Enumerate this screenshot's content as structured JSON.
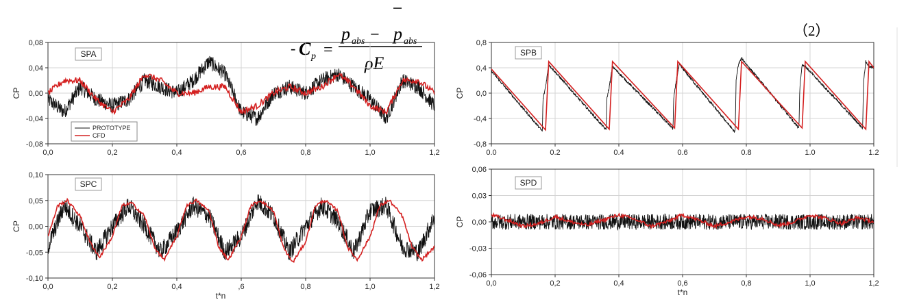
{
  "equation": {
    "prefix": "-",
    "lhs": "C",
    "lhs_sub": "p",
    "equals": "=",
    "num_p": "p",
    "num_sub": "abs",
    "num_minus": "−",
    "den": "ρE",
    "number": "（2）"
  },
  "colors": {
    "prototype": "#111111",
    "cfd": "#d42020",
    "grid": "#d4d4d4"
  },
  "chart_data": [
    {
      "id": "spa",
      "type": "line",
      "panel_label": "SPA",
      "ylabel": "CP",
      "xlabel": "",
      "xlim": [
        0,
        1.2
      ],
      "ylim": [
        -0.08,
        0.08
      ],
      "x_ticks": [
        "0,0",
        "0,2",
        "0,4",
        "0,6",
        "0,8",
        "1,0",
        "1,2"
      ],
      "y_ticks": [
        "-0,08",
        "-0,04",
        "0,00",
        "0,04",
        "0,08"
      ],
      "legend": {
        "placement": "bottom-left",
        "entries": [
          "PROTOTYPE",
          "CFD"
        ]
      },
      "series": [
        {
          "name": "PROTOTYPE",
          "x": [
            0,
            0.05,
            0.1,
            0.15,
            0.2,
            0.25,
            0.3,
            0.35,
            0.4,
            0.45,
            0.5,
            0.55,
            0.6,
            0.65,
            0.7,
            0.75,
            0.8,
            0.85,
            0.9,
            0.95,
            1.0,
            1.05,
            1.1,
            1.15,
            1.2
          ],
          "y": [
            -0.01,
            -0.03,
            0.01,
            -0.01,
            -0.02,
            -0.01,
            0.02,
            0.01,
            0.0,
            0.02,
            0.05,
            0.03,
            -0.03,
            -0.04,
            0.0,
            0.01,
            0.0,
            0.02,
            0.03,
            0.01,
            -0.01,
            -0.04,
            0.02,
            0.01,
            -0.02
          ],
          "noise": 0.012
        },
        {
          "name": "CFD",
          "x": [
            0,
            0.05,
            0.1,
            0.15,
            0.2,
            0.25,
            0.3,
            0.35,
            0.4,
            0.45,
            0.5,
            0.55,
            0.6,
            0.65,
            0.7,
            0.75,
            0.8,
            0.85,
            0.9,
            0.95,
            1.0,
            1.05,
            1.1,
            1.15,
            1.2
          ],
          "y": [
            0.0,
            0.02,
            0.02,
            -0.01,
            -0.03,
            -0.01,
            0.03,
            0.02,
            0.0,
            0.0,
            0.01,
            0.01,
            -0.03,
            -0.02,
            0.0,
            0.01,
            0.0,
            0.01,
            0.03,
            0.01,
            -0.02,
            -0.03,
            0.02,
            0.02,
            0.0
          ],
          "noise": 0.005
        }
      ]
    },
    {
      "id": "spb",
      "type": "line",
      "panel_label": "SPB",
      "ylabel": "CP",
      "xlabel": "",
      "xlim": [
        0,
        1.2
      ],
      "ylim": [
        -0.8,
        0.8
      ],
      "x_ticks": [
        "0.0",
        "0.2",
        "0.4",
        "0.6",
        "0.8",
        "1.0",
        "1.2"
      ],
      "y_ticks": [
        "-0,8",
        "-0,4",
        "0,0",
        "0,4",
        "0,8"
      ],
      "series": [
        {
          "name": "PROTOTYPE",
          "x": [
            0,
            0.16,
            0.162,
            0.17,
            0.18,
            0.36,
            0.362,
            0.37,
            0.38,
            0.57,
            0.572,
            0.58,
            0.59,
            0.765,
            0.768,
            0.775,
            0.785,
            0.965,
            0.968,
            0.975,
            0.985,
            1.165,
            1.168,
            1.175,
            1.185,
            1.2
          ],
          "y": [
            0.35,
            -0.6,
            -0.1,
            0.1,
            0.45,
            -0.58,
            -0.1,
            0.1,
            0.42,
            -0.56,
            -0.1,
            0.2,
            0.45,
            -0.62,
            0.2,
            0.45,
            0.55,
            -0.55,
            0.1,
            0.45,
            0.42,
            -0.55,
            0.2,
            0.5,
            0.42,
            0.4
          ],
          "noise": 0.02
        },
        {
          "name": "CFD",
          "x": [
            0,
            0.17,
            0.18,
            0.37,
            0.38,
            0.575,
            0.585,
            0.775,
            0.785,
            0.975,
            0.985,
            1.175,
            1.185,
            1.2
          ],
          "y": [
            0.38,
            -0.58,
            0.5,
            -0.57,
            0.5,
            -0.55,
            0.5,
            -0.57,
            0.5,
            -0.55,
            0.5,
            -0.57,
            0.5,
            0.4
          ],
          "noise": 0
        }
      ]
    },
    {
      "id": "spc",
      "type": "line",
      "panel_label": "SPC",
      "ylabel": "CP",
      "xlabel": "t*n",
      "xlim": [
        0,
        1.2
      ],
      "ylim": [
        -0.1,
        0.1
      ],
      "x_ticks": [
        "0,0",
        "0,2",
        "0,4",
        ",6",
        "0,8",
        "1,0",
        "1,2"
      ],
      "y_ticks": [
        "-0,10",
        "-0,05",
        "0,00",
        "0,05",
        "0,10"
      ],
      "series": [
        {
          "name": "PROTOTYPE",
          "x": [
            0,
            0.05,
            0.1,
            0.15,
            0.2,
            0.25,
            0.3,
            0.35,
            0.4,
            0.45,
            0.5,
            0.55,
            0.6,
            0.65,
            0.7,
            0.75,
            0.8,
            0.85,
            0.9,
            0.95,
            1.0,
            1.05,
            1.1,
            1.15,
            1.2
          ],
          "y": [
            -0.04,
            0.04,
            0.0,
            -0.05,
            0.0,
            0.04,
            0.0,
            -0.05,
            -0.01,
            0.04,
            0.02,
            -0.05,
            -0.02,
            0.05,
            0.02,
            -0.05,
            0.0,
            0.04,
            0.01,
            -0.05,
            0.03,
            0.04,
            -0.04,
            -0.05,
            0.02
          ],
          "noise": 0.018
        },
        {
          "name": "CFD",
          "x": [
            0,
            0.03,
            0.06,
            0.1,
            0.13,
            0.16,
            0.2,
            0.23,
            0.26,
            0.3,
            0.33,
            0.36,
            0.4,
            0.43,
            0.46,
            0.5,
            0.53,
            0.56,
            0.6,
            0.63,
            0.66,
            0.7,
            0.73,
            0.76,
            0.8,
            0.83,
            0.86,
            0.9,
            0.93,
            0.96,
            1.0,
            1.03,
            1.06,
            1.1,
            1.13,
            1.16,
            1.2
          ],
          "y": [
            -0.02,
            0.04,
            0.05,
            0.02,
            -0.03,
            -0.06,
            -0.02,
            0.04,
            0.045,
            0.02,
            -0.04,
            -0.065,
            -0.02,
            0.04,
            0.05,
            0.03,
            -0.04,
            -0.065,
            -0.02,
            0.04,
            0.05,
            0.03,
            -0.04,
            -0.07,
            -0.03,
            0.04,
            0.05,
            0.03,
            -0.04,
            -0.065,
            -0.02,
            0.04,
            0.05,
            0.02,
            -0.04,
            -0.065,
            -0.04
          ],
          "noise": 0.003
        }
      ]
    },
    {
      "id": "spd",
      "type": "line",
      "panel_label": "SPD",
      "ylabel": "CP",
      "xlabel": "t*n",
      "xlim": [
        0,
        1.2
      ],
      "ylim": [
        -0.06,
        0.06
      ],
      "x_ticks": [
        "0,0",
        "0,2",
        "0,4",
        "0,6",
        "0,8",
        "1,0",
        "1,2"
      ],
      "y_ticks": [
        "-0,06",
        "-0,03",
        "0,00",
        "0,03",
        "0,06"
      ],
      "series": [
        {
          "name": "PROTOTYPE",
          "x": [
            0,
            0.1,
            0.2,
            0.3,
            0.4,
            0.5,
            0.6,
            0.7,
            0.8,
            0.9,
            1.0,
            1.1,
            1.2
          ],
          "y": [
            0.0,
            0.0,
            0.0,
            0.0,
            0.0,
            0.0,
            0.0,
            0.0,
            0.0,
            0.0,
            0.0,
            0.0,
            0.0
          ],
          "noise": 0.009
        },
        {
          "name": "CFD",
          "x": [
            0,
            0.05,
            0.1,
            0.15,
            0.2,
            0.25,
            0.3,
            0.35,
            0.4,
            0.45,
            0.5,
            0.55,
            0.6,
            0.65,
            0.7,
            0.75,
            0.8,
            0.85,
            0.9,
            0.95,
            1.0,
            1.05,
            1.1,
            1.15,
            1.2
          ],
          "y": [
            0.008,
            0.002,
            -0.005,
            -0.002,
            0.006,
            0.0,
            -0.004,
            0.002,
            0.008,
            0.003,
            -0.005,
            0.0,
            0.008,
            0.002,
            -0.005,
            0.0,
            0.006,
            0.004,
            -0.004,
            0.0,
            0.008,
            0.004,
            -0.002,
            0.005,
            0.0
          ],
          "noise": 0.002
        }
      ]
    }
  ]
}
